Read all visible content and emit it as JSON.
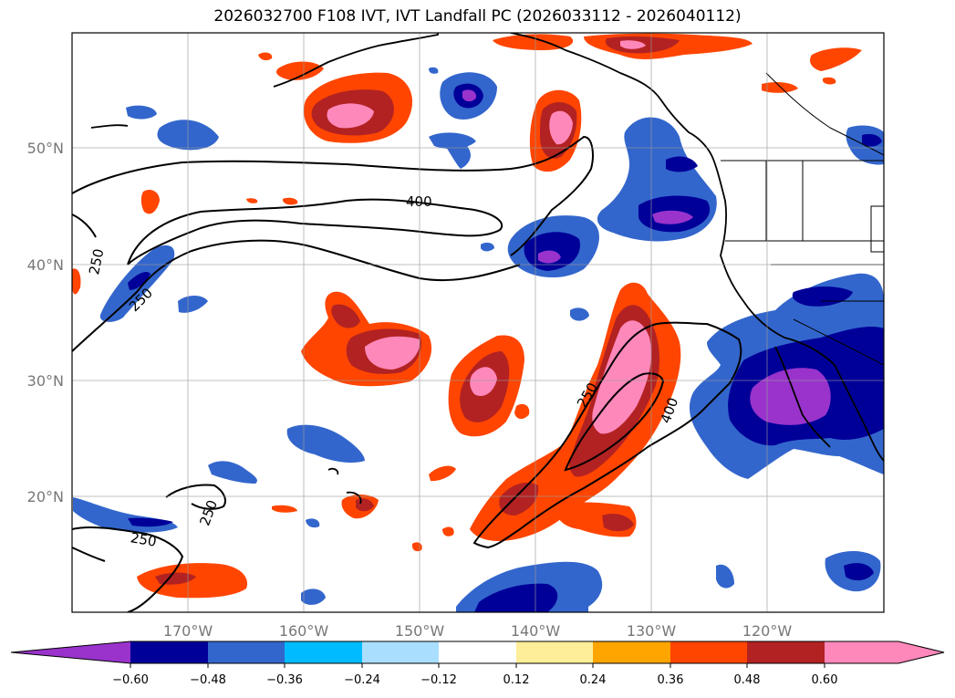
{
  "title": "2026032700 F108 IVT, IVT Landfall PC (2026033112 - 2026040112)",
  "map": {
    "lat_labels": [
      "50°N",
      "40°N",
      "30°N",
      "20°N"
    ],
    "lon_labels": [
      "170°W",
      "160°W",
      "150°W",
      "140°W",
      "130°W",
      "120°W"
    ],
    "grid": true,
    "contour_labels": [
      "400",
      "250",
      "250",
      "250",
      "400",
      "250",
      "250"
    ]
  },
  "colorbar": {
    "orientation": "horizontal",
    "extend": "both",
    "colors": [
      "#9933cc",
      "#000099",
      "#3366cc",
      "#00bbff",
      "#aadeff",
      "#ffffff",
      "#ffee99",
      "#ffa500",
      "#ff4500",
      "#b22222",
      "#ff88bb",
      "#ff88bb"
    ],
    "tick_labels": [
      "−0.60",
      "−0.48",
      "−0.36",
      "−0.24",
      "−0.12",
      "0.12",
      "0.24",
      "0.36",
      "0.48",
      "0.60"
    ]
  }
}
